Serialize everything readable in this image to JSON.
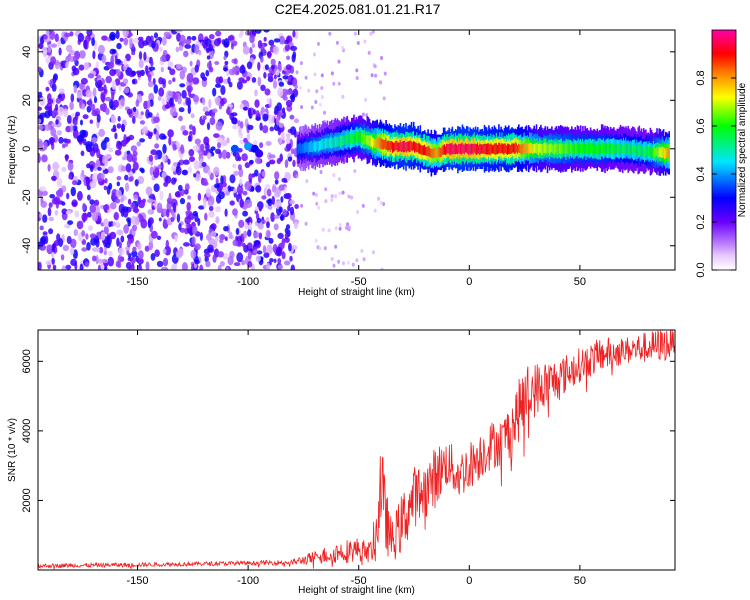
{
  "title": "C2E4.2025.081.01.21.R17",
  "chart_data": [
    {
      "type": "heatmap",
      "xlabel": "Height of straight line (km)",
      "ylabel": "Frequency (Hz)",
      "xlim": [
        -195,
        93
      ],
      "ylim": [
        -50,
        49
      ],
      "x_ticks": [
        -150,
        -100,
        -50,
        0,
        50
      ],
      "y_ticks": [
        -40,
        -20,
        0,
        20,
        40
      ],
      "colorbar": {
        "label": "Normalized spectral amplitude",
        "range": [
          0,
          1
        ],
        "ticks": [
          0.0,
          0.2,
          0.4,
          0.6,
          0.8
        ],
        "tick_labels": [
          "0.0",
          "0.2",
          "0.4",
          "0.6",
          "0.8"
        ],
        "colors": [
          "#ffffff",
          "#d8a8ff",
          "#8a2be2",
          "#5b00ff",
          "#0000ff",
          "#00ffff",
          "#00ff00",
          "#ffff00",
          "#ff8000",
          "#ff0000",
          "#ff00ff"
        ]
      },
      "signal_ridge": {
        "x": [
          -78,
          -70,
          -60,
          -55,
          -50,
          -45,
          -40,
          -35,
          -30,
          -25,
          -20,
          -15,
          -10,
          -5,
          0,
          10,
          20,
          30,
          40,
          50,
          60,
          70,
          80,
          90
        ],
        "freq": [
          0,
          1,
          3,
          4,
          5,
          3,
          2,
          1,
          1,
          1,
          -1,
          -2,
          0,
          0,
          0,
          0,
          0,
          0,
          0,
          0,
          0,
          0,
          -1,
          -2
        ],
        "amplitude": [
          0.35,
          0.45,
          0.5,
          0.55,
          0.6,
          0.7,
          0.85,
          0.9,
          0.95,
          0.9,
          0.9,
          0.8,
          0.95,
          0.95,
          0.95,
          0.9,
          0.9,
          0.7,
          0.65,
          0.6,
          0.6,
          0.55,
          0.55,
          0.8
        ]
      },
      "noise_region": {
        "x_range": [
          -195,
          -78
        ],
        "amplitude": [
          0.05,
          0.3
        ]
      }
    },
    {
      "type": "line",
      "xlabel": "Height of straight line (km)",
      "ylabel": "SNR (10 * v/v)",
      "xlim": [
        -195,
        93
      ],
      "ylim": [
        0,
        6900
      ],
      "x_ticks": [
        -150,
        -100,
        -50,
        0,
        50
      ],
      "y_ticks": [
        2000,
        4000,
        6000
      ],
      "color": "#ee2222",
      "envelope": {
        "x": [
          -195,
          -150,
          -100,
          -80,
          -70,
          -60,
          -55,
          -50,
          -45,
          -42,
          -40,
          -38,
          -35,
          -30,
          -25,
          -20,
          -15,
          -10,
          -5,
          0,
          5,
          10,
          15,
          20,
          25,
          30,
          40,
          50,
          60,
          70,
          80,
          90,
          93
        ],
        "mean": [
          120,
          150,
          200,
          220,
          350,
          500,
          550,
          600,
          500,
          1000,
          2600,
          1500,
          800,
          1400,
          2100,
          2300,
          2700,
          3100,
          2700,
          3000,
          3300,
          3600,
          3700,
          4200,
          5000,
          5200,
          5500,
          5900,
          6200,
          6300,
          6400,
          6500,
          6600
        ],
        "spread": [
          60,
          60,
          60,
          80,
          200,
          300,
          350,
          350,
          300,
          800,
          1500,
          1000,
          600,
          900,
          900,
          800,
          900,
          700,
          700,
          700,
          700,
          700,
          700,
          900,
          900,
          800,
          600,
          500,
          500,
          400,
          450,
          500,
          300
        ]
      }
    }
  ]
}
